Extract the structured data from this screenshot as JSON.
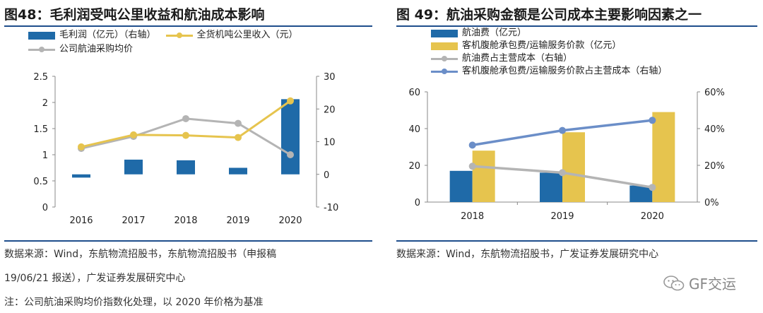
{
  "left": {
    "title": "图48：毛利润受吨公里收益和航油成本影响",
    "legend": {
      "bar_label": "毛利润（亿元）（右轴）",
      "line1_label": "全货机吨公里收入（元）",
      "line2_label": "公司航油采购均价"
    },
    "source_lines": [
      "数据来源：Wind，东航物流招股书，东航物流招股书（申报稿",
      "19/06/21 报送），广发证券发展研究中心",
      "注：公司航油采购均价指数化处理，以 2020 年价格为基准"
    ]
  },
  "right": {
    "title": "图 49：航油采购金额是公司成本主要影响因素之一",
    "legend": {
      "bar1_label": "航油费（亿元）",
      "bar2_label": "客机腹舱承包费/运输服务价款（亿元）",
      "line1_label": "航油费占主营成本（右轴）",
      "line2_label": "客机腹舱承包费/运输服务价款占主营成本（右轴）"
    },
    "source_lines": [
      "数据来源：Wind，东航物流招股书，广发证券发展研究中心"
    ]
  },
  "watermark": "GF交运",
  "colors": {
    "blue_bar": "#1f6aa8",
    "yellow": "#e6c44e",
    "gray": "#b4b4b4",
    "line_blue": "#6b8ec8",
    "rule": "#1f4e8c"
  },
  "chart_data": [
    {
      "type": "bar+line",
      "title": "图48：毛利润受吨公里收益和航油成本影响",
      "categories": [
        "2016",
        "2017",
        "2018",
        "2019",
        "2020"
      ],
      "left_axis": {
        "ylim": [
          0,
          2.5
        ],
        "ticks": [
          "0",
          "0.5",
          "1",
          "1.5",
          "2",
          "2.5"
        ]
      },
      "right_axis": {
        "ylim": [
          -10,
          30
        ],
        "ticks": [
          "-10",
          "0",
          "10",
          "20",
          "30"
        ]
      },
      "series": [
        {
          "name": "毛利润（亿元）（右轴）",
          "kind": "bar",
          "axis": "right",
          "values": [
            -1,
            4.5,
            4.3,
            2.0,
            23.0
          ]
        },
        {
          "name": "全货机吨公里收入（元）",
          "kind": "line",
          "axis": "left",
          "values": [
            1.15,
            1.38,
            1.37,
            1.33,
            2.03
          ]
        },
        {
          "name": "公司航油采购均价",
          "kind": "line",
          "axis": "left",
          "values": [
            1.12,
            1.35,
            1.69,
            1.6,
            1.0
          ]
        }
      ],
      "grid": false,
      "legend_position": "top-left"
    },
    {
      "type": "bar+line",
      "title": "图 49：航油采购金额是公司成本主要影响因素之一",
      "categories": [
        "2018",
        "2019",
        "2020"
      ],
      "left_axis": {
        "ylim": [
          0,
          60
        ],
        "ticks": [
          "0",
          "20",
          "40",
          "60"
        ]
      },
      "right_axis": {
        "ylim": [
          0,
          60
        ],
        "ticks": [
          "0%",
          "20%",
          "40%",
          "60%"
        ]
      },
      "series": [
        {
          "name": "航油费（亿元）",
          "kind": "bar",
          "axis": "left",
          "values": [
            17,
            16,
            9
          ]
        },
        {
          "name": "客机腹舱承包费/运输服务价款（亿元）",
          "kind": "bar",
          "axis": "left",
          "values": [
            28,
            38,
            49
          ]
        },
        {
          "name": "航油费占主营成本（右轴）",
          "kind": "line",
          "axis": "right",
          "values": [
            19.5,
            16,
            8
          ]
        },
        {
          "name": "客机腹舱承包费/运输服务价款占主营成本（右轴）",
          "kind": "line",
          "axis": "right",
          "values": [
            31,
            39,
            44.5
          ]
        }
      ],
      "grid": false,
      "legend_position": "top-left"
    }
  ]
}
